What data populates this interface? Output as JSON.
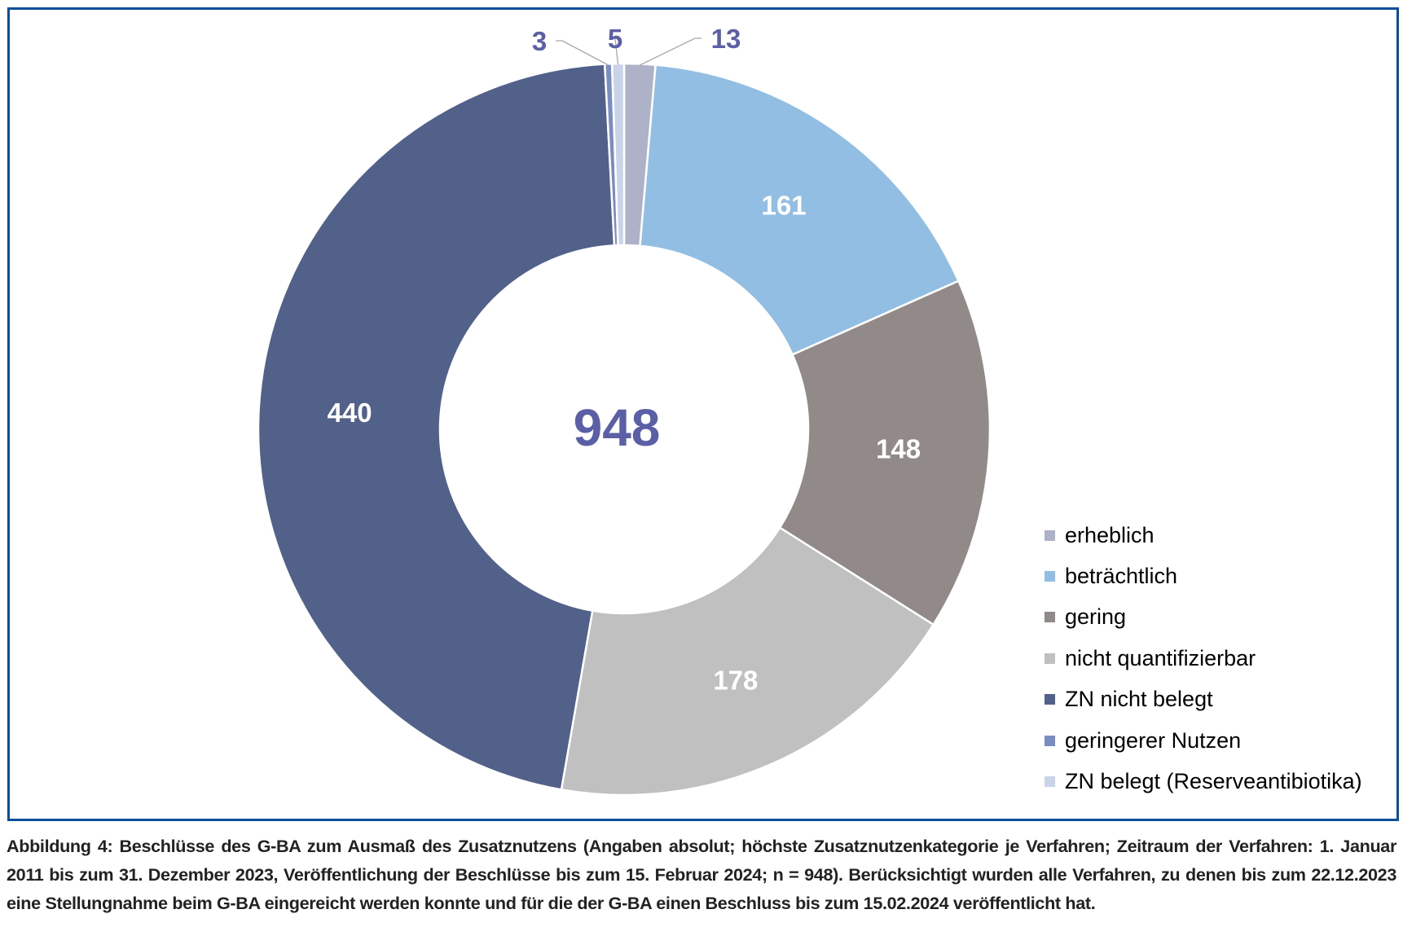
{
  "chart_data": {
    "type": "pie",
    "subtype": "donut",
    "title": "",
    "center_label": "948",
    "categories": [
      "erheblich",
      "beträchtlich",
      "gering",
      "nicht quantifizierbar",
      "ZN nicht belegt",
      "geringerer Nutzen",
      "ZN belegt (Reserveantibiotika)"
    ],
    "values": [
      13,
      161,
      148,
      178,
      440,
      3,
      5
    ],
    "colors": [
      "#adb2c8",
      "#93bee3",
      "#928a88",
      "#c0c0c0",
      "#526189",
      "#7b8cc2",
      "#c9d3ea"
    ],
    "data_labels": [
      "13",
      "161",
      "148",
      "178",
      "440",
      "3",
      "5"
    ],
    "legend_position": "bottom-right"
  },
  "caption": "Abbildung 4: Beschlüsse des G-BA zum Ausmaß des Zusatznutzens (Angaben absolut; höchste Zusatznutzenkategorie je Verfahren; Zeitraum der Verfahren: 1. Januar 2011 bis zum 31. Dezember 2023, Veröffentlichung der Beschlüsse bis zum 15. Februar 2024; n = 948). Berücksichtigt wurden alle Verfahren, zu denen bis zum 22.12.2023 eine Stellungnahme beim G-BA eingereicht werden konnte und für die der G-BA einen Beschluss bis zum 15.02.2024 veröffentlicht hat."
}
